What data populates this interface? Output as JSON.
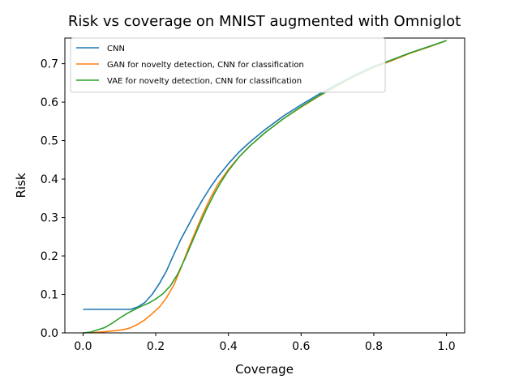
{
  "chart_data": {
    "type": "line",
    "title": "Risk vs coverage on MNIST augmented with Omniglot",
    "xlabel": "Coverage",
    "ylabel": "Risk",
    "xlim": [
      -0.05,
      1.05
    ],
    "ylim": [
      0.0,
      0.7666
    ],
    "xticks": [
      0.0,
      0.2,
      0.4,
      0.6,
      0.8,
      1.0
    ],
    "xtick_labels": [
      "0.0",
      "0.2",
      "0.4",
      "0.6",
      "0.8",
      "1.0"
    ],
    "yticks": [
      0.0,
      0.1,
      0.2,
      0.3,
      0.4,
      0.5,
      0.6,
      0.7
    ],
    "ytick_labels": [
      "0.0",
      "0.1",
      "0.2",
      "0.3",
      "0.4",
      "0.5",
      "0.6",
      "0.7"
    ],
    "legend_position": "top-left",
    "grid": false,
    "series": [
      {
        "name": "CNN",
        "color": "#1f77b4",
        "x": [
          0.0,
          0.05,
          0.1,
          0.13,
          0.15,
          0.17,
          0.19,
          0.21,
          0.23,
          0.25,
          0.27,
          0.29,
          0.31,
          0.33,
          0.35,
          0.37,
          0.4,
          0.43,
          0.46,
          0.5,
          0.55,
          0.6,
          0.65,
          0.7,
          0.75,
          0.8,
          0.85,
          0.9,
          0.95,
          1.0
        ],
        "y": [
          0.061,
          0.061,
          0.061,
          0.061,
          0.067,
          0.079,
          0.1,
          0.128,
          0.162,
          0.205,
          0.245,
          0.28,
          0.315,
          0.348,
          0.378,
          0.405,
          0.44,
          0.471,
          0.497,
          0.528,
          0.563,
          0.593,
          0.621,
          0.647,
          0.671,
          0.693,
          0.71,
          0.728,
          0.744,
          0.76
        ]
      },
      {
        "name": "GAN for novelty detection, CNN for classification",
        "color": "#ff7f0e",
        "x": [
          0.0,
          0.03,
          0.06,
          0.09,
          0.11,
          0.13,
          0.15,
          0.17,
          0.19,
          0.21,
          0.23,
          0.25,
          0.27,
          0.29,
          0.31,
          0.33,
          0.35,
          0.37,
          0.4,
          0.43,
          0.46,
          0.5,
          0.55,
          0.6,
          0.65,
          0.7,
          0.75,
          0.8,
          0.85,
          0.9,
          0.95,
          1.0
        ],
        "y": [
          0.0,
          0.001,
          0.003,
          0.006,
          0.008,
          0.013,
          0.022,
          0.034,
          0.05,
          0.067,
          0.092,
          0.125,
          0.17,
          0.22,
          0.265,
          0.31,
          0.35,
          0.385,
          0.425,
          0.458,
          0.487,
          0.52,
          0.556,
          0.587,
          0.616,
          0.643,
          0.668,
          0.69,
          0.708,
          0.727,
          0.743,
          0.76
        ]
      },
      {
        "name": "VAE for novelty detection, CNN for classification",
        "color": "#2ca02c",
        "x": [
          0.0,
          0.02,
          0.04,
          0.06,
          0.08,
          0.1,
          0.12,
          0.14,
          0.16,
          0.18,
          0.2,
          0.22,
          0.24,
          0.26,
          0.28,
          0.3,
          0.32,
          0.34,
          0.36,
          0.38,
          0.4,
          0.43,
          0.46,
          0.5,
          0.55,
          0.6,
          0.65,
          0.7,
          0.75,
          0.8,
          0.85,
          0.9,
          0.95,
          1.0
        ],
        "y": [
          0.0,
          0.002,
          0.008,
          0.014,
          0.025,
          0.038,
          0.05,
          0.06,
          0.069,
          0.077,
          0.088,
          0.102,
          0.122,
          0.152,
          0.192,
          0.236,
          0.28,
          0.322,
          0.36,
          0.393,
          0.422,
          0.458,
          0.487,
          0.52,
          0.556,
          0.588,
          0.617,
          0.644,
          0.669,
          0.691,
          0.71,
          0.728,
          0.744,
          0.76
        ]
      }
    ]
  }
}
